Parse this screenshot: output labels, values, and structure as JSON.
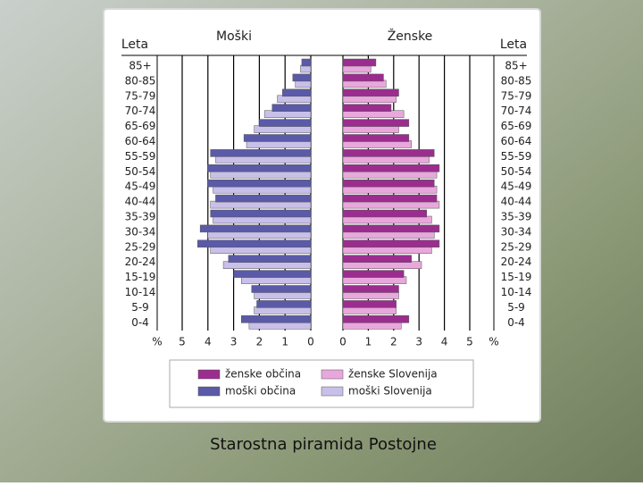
{
  "chart_data": {
    "type": "pyramid",
    "caption": "Starostna piramida Postojne",
    "left_title": "Moški",
    "right_title": "Ženske",
    "age_label": "Leta",
    "unit_label": "%",
    "categories": [
      "85+",
      "80-85",
      "75-79",
      "70-74",
      "65-69",
      "60-64",
      "55-59",
      "50-54",
      "45-49",
      "40-44",
      "35-39",
      "30-34",
      "25-29",
      "20-24",
      "15-19",
      "10-14",
      "5-9",
      "0-4"
    ],
    "xlim": [
      0,
      5
    ],
    "xticks": [
      0,
      1,
      2,
      3,
      4,
      5
    ],
    "grid": true,
    "series": [
      {
        "name": "ženske občina",
        "color": "#9b2d8e",
        "side": "right",
        "values": [
          1.3,
          1.6,
          2.2,
          1.9,
          2.6,
          2.6,
          3.6,
          3.8,
          3.6,
          3.7,
          3.3,
          3.8,
          3.8,
          2.7,
          2.4,
          2.2,
          2.1,
          2.6
        ]
      },
      {
        "name": "ženske Slovenija",
        "color": "#e8a8dc",
        "side": "right",
        "values": [
          1.1,
          1.7,
          2.1,
          2.4,
          2.2,
          2.7,
          3.4,
          3.7,
          3.7,
          3.8,
          3.5,
          3.6,
          3.5,
          3.1,
          2.5,
          2.2,
          2.1,
          2.3
        ]
      },
      {
        "name": "moški občina",
        "color": "#5a5aa8",
        "side": "left",
        "values": [
          0.35,
          0.7,
          1.1,
          1.5,
          2.0,
          2.6,
          3.9,
          4.0,
          4.0,
          3.7,
          3.9,
          4.3,
          4.4,
          3.2,
          3.0,
          2.3,
          2.1,
          2.7
        ]
      },
      {
        "name": "moški Slovenija",
        "color": "#c8c0e8",
        "side": "left",
        "values": [
          0.4,
          0.6,
          1.3,
          1.8,
          2.2,
          2.5,
          3.7,
          3.9,
          3.8,
          3.9,
          3.8,
          4.0,
          3.9,
          3.4,
          2.7,
          2.2,
          2.2,
          2.4
        ]
      }
    ]
  }
}
